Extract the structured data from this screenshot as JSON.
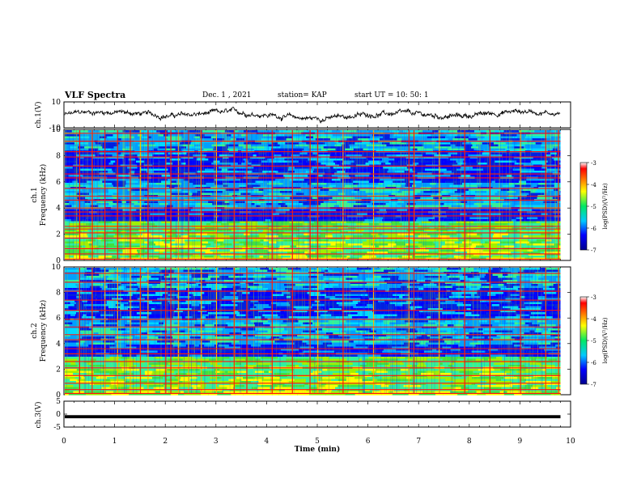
{
  "header": {
    "title": "VLF Spectra",
    "date": "Dec. 1 , 2021",
    "station": "station= KAP",
    "start_time": "start  UT =   10: 50: 1"
  },
  "chart_data": [
    {
      "type": "line",
      "panel": "ch1-waveform",
      "ylabel": "ch.1(V)",
      "ylim": [
        -10,
        10
      ],
      "yticks": [
        10,
        -10
      ],
      "xlim": [
        0,
        10
      ],
      "data_end_min": 9.8,
      "line_color": "#000000",
      "description_of_values": "noisy waveform fluctuating roughly between -5 and +5 V over 0 to 9.8 min"
    },
    {
      "type": "heatmap",
      "panel": "ch1-spectrogram",
      "ylabel": "ch.1\nFrequency (kHz)",
      "ylim": [
        0,
        10
      ],
      "yticks": [
        0,
        2,
        4,
        6,
        8,
        10
      ],
      "xlim": [
        0,
        10
      ],
      "data_end_min": 9.8,
      "colorbar": {
        "label": "log(PSD)(V²/Hz)",
        "ticks": [
          -3,
          -4,
          -5,
          -6,
          -7
        ],
        "range": [
          -7,
          -3
        ]
      },
      "bands_khz": [
        0.1,
        0.5,
        0.9,
        1.7,
        2.1,
        2.4,
        2.6,
        3.4,
        3.7,
        4.0,
        4.6,
        4.9,
        5.5,
        6.3,
        6.6,
        7.2,
        7.9,
        8.3,
        9.1,
        9.7
      ],
      "vertical_events_min": [
        0.3,
        0.55,
        0.8,
        1.05,
        1.3,
        1.5,
        1.65,
        2.0,
        2.1,
        2.25,
        2.45,
        2.7,
        3.0,
        3.35,
        3.6,
        4.1,
        4.5,
        4.85,
        5.0,
        5.5,
        6.1,
        6.8,
        6.9,
        7.4,
        7.9,
        8.4,
        9.0,
        9.5,
        9.75
      ]
    },
    {
      "type": "heatmap",
      "panel": "ch2-spectrogram",
      "ylabel": "ch.2\nFrequency (kHz)",
      "ylim": [
        0,
        10
      ],
      "yticks": [
        0,
        2,
        4,
        6,
        8,
        10
      ],
      "xlim": [
        0,
        10
      ],
      "data_end_min": 9.8,
      "colorbar": {
        "label": "log(PSD)(V²/Hz)",
        "ticks": [
          -3,
          -4,
          -5,
          -6,
          -7
        ],
        "range": [
          -7,
          -3
        ]
      },
      "bands_khz": [
        0.1,
        0.4,
        0.9,
        1.5,
        2.1,
        2.6,
        3.2,
        3.6,
        4.3,
        4.7,
        5.3,
        5.9,
        6.6,
        7.4,
        8.1,
        8.8,
        9.5
      ],
      "vertical_events_min": [
        0.3,
        0.55,
        0.8,
        1.05,
        1.3,
        1.5,
        1.65,
        2.0,
        2.1,
        2.25,
        2.45,
        2.7,
        3.0,
        3.35,
        3.6,
        4.1,
        4.5,
        4.85,
        5.0,
        5.5,
        6.1,
        6.8,
        6.9,
        7.4,
        7.9,
        8.4,
        9.0,
        9.5,
        9.75
      ]
    },
    {
      "type": "line",
      "panel": "ch3-waveform",
      "ylabel": "ch.3(V)",
      "ylim": [
        -5,
        5
      ],
      "yticks": [
        5,
        0,
        -5
      ],
      "xlim": [
        0,
        10
      ],
      "data_end_min": 9.8,
      "line_color": "#000000",
      "description_of_values": "nearly constant trace at about -1 V (thick black band)"
    }
  ],
  "xaxis": {
    "label": "Time  (min)",
    "ticks": [
      0,
      1,
      2,
      3,
      4,
      5,
      6,
      7,
      8,
      9,
      10
    ]
  }
}
